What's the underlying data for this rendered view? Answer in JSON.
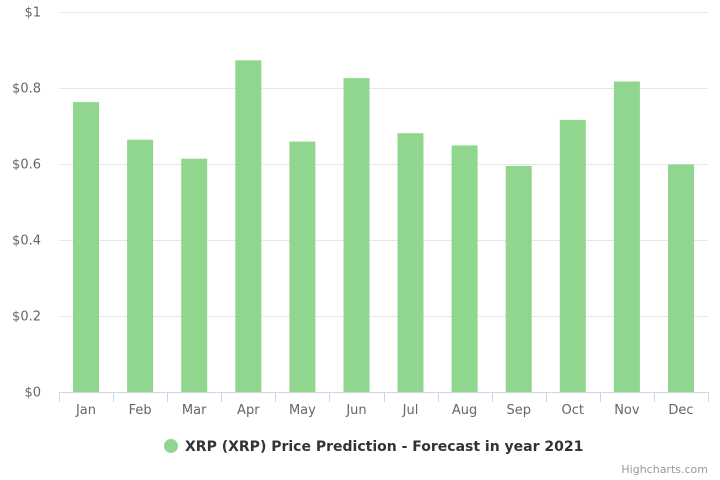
{
  "chart_data": {
    "type": "bar",
    "categories": [
      "Jan",
      "Feb",
      "Mar",
      "Apr",
      "May",
      "Jun",
      "Jul",
      "Aug",
      "Sep",
      "Oct",
      "Nov",
      "Dec"
    ],
    "series": [
      {
        "name": "XRP (XRP) Price Prediction - Forecast in year 2021",
        "color": "#90d68e",
        "values": [
          0.763,
          0.664,
          0.614,
          0.873,
          0.659,
          0.826,
          0.681,
          0.649,
          0.595,
          0.716,
          0.817,
          0.599
        ]
      }
    ],
    "y_ticks": [
      {
        "value": 0,
        "label": "$0"
      },
      {
        "value": 0.2,
        "label": "$0.2"
      },
      {
        "value": 0.4,
        "label": "$0.4"
      },
      {
        "value": 0.6,
        "label": "$0.6"
      },
      {
        "value": 0.8,
        "label": "$0.8"
      },
      {
        "value": 1,
        "label": "$1"
      }
    ],
    "ylim": [
      0,
      1
    ],
    "grid": true,
    "legend_position": "bottom-center",
    "colors": {
      "grid": "#e6e6e6",
      "axis": "#ccd6eb"
    }
  },
  "legend": {
    "label": "XRP (XRP) Price Prediction - Forecast in year 2021"
  },
  "credits": {
    "label": "Highcharts.com"
  }
}
